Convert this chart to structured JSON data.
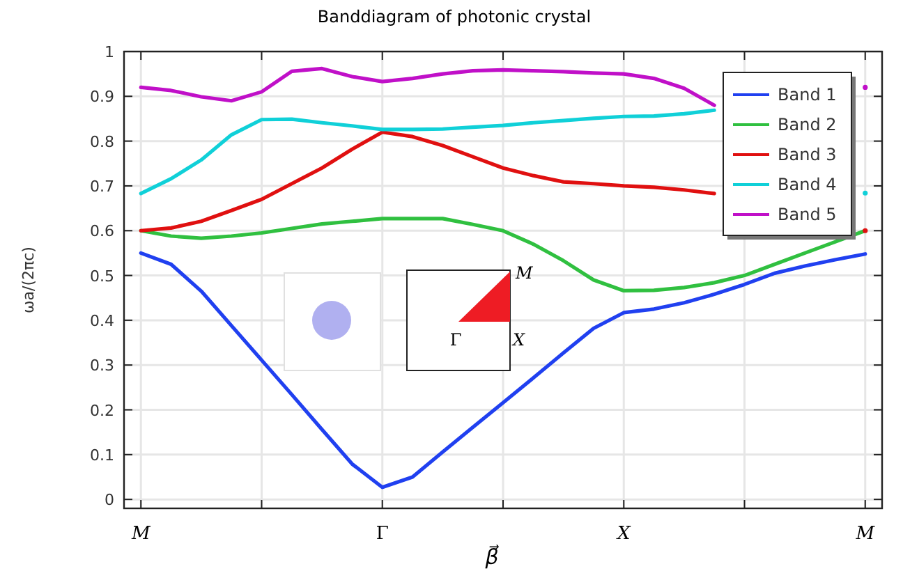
{
  "chart_data": {
    "type": "line",
    "title": "Banddiagram of photonic crystal",
    "xlabel": "β⃗",
    "ylabel": "ωa/(2πc)",
    "categories": [
      "M",
      null,
      null,
      null,
      null,
      null,
      null,
      null,
      "Γ",
      null,
      null,
      null,
      null,
      null,
      null,
      null,
      "X",
      null,
      null,
      null,
      null,
      null,
      null,
      null,
      "M"
    ],
    "ylim": [
      -0.02,
      1
    ],
    "yticks": [
      0,
      0.1,
      0.2,
      0.3,
      0.4,
      0.5,
      0.6,
      0.7,
      0.8,
      0.9,
      1
    ],
    "grid": true,
    "legend": "top right",
    "line_style": "solid",
    "marker": "none",
    "annotations": [
      "M",
      "Γ",
      "X"
    ],
    "series": [
      {
        "name": "Band 1",
        "color": "#2040f0",
        "values": [
          0.55,
          0.525,
          0.465,
          0.388,
          0.311,
          0.234,
          0.156,
          0.079,
          0.027,
          0.05,
          0.106,
          0.161,
          0.216,
          0.271,
          0.327,
          0.382,
          0.417,
          0.425,
          0.439,
          0.458,
          0.48,
          0.505,
          0.521,
          0.535,
          0.548
        ]
      },
      {
        "name": "Band 2",
        "color": "#30c040",
        "values": [
          0.6,
          0.588,
          0.583,
          0.588,
          0.595,
          0.605,
          0.615,
          0.621,
          0.627,
          0.627,
          0.627,
          0.614,
          0.6,
          0.57,
          0.533,
          0.49,
          0.466,
          0.467,
          0.473,
          0.484,
          0.5,
          0.525,
          0.55,
          0.575,
          0.6
        ]
      },
      {
        "name": "Band 3",
        "color": "#e01010",
        "values": [
          0.6,
          0.606,
          0.621,
          0.645,
          0.67,
          0.705,
          0.74,
          0.782,
          0.82,
          0.81,
          0.79,
          0.765,
          0.74,
          0.723,
          0.709,
          0.705,
          0.7,
          0.697,
          0.691,
          0.683,
          null,
          null,
          null,
          null,
          0.6
        ]
      },
      {
        "name": "Band 4",
        "color": "#10d0d8",
        "values": [
          0.683,
          0.716,
          0.758,
          0.814,
          0.848,
          0.849,
          0.841,
          0.834,
          0.826,
          0.826,
          0.827,
          0.831,
          0.835,
          0.841,
          0.846,
          0.851,
          0.855,
          0.856,
          0.861,
          0.869,
          null,
          null,
          null,
          null,
          0.684
        ]
      },
      {
        "name": "Band 5",
        "color": "#c010c8",
        "values": [
          0.92,
          0.913,
          0.899,
          0.89,
          0.91,
          0.956,
          0.962,
          0.944,
          0.933,
          0.94,
          0.95,
          0.957,
          0.959,
          0.957,
          0.955,
          0.952,
          0.95,
          0.94,
          0.918,
          0.88,
          null,
          null,
          null,
          null,
          0.92
        ]
      }
    ]
  }
}
